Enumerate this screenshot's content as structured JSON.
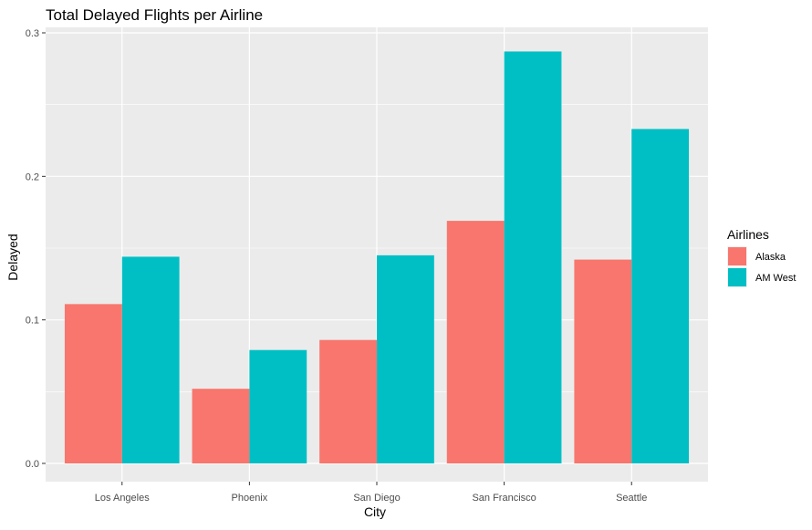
{
  "chart_data": {
    "type": "bar",
    "title": "Total Delayed Flights per Airline",
    "xlabel": "City",
    "ylabel": "Delayed",
    "categories": [
      "Los Angeles",
      "Phoenix",
      "San Diego",
      "San Francisco",
      "Seattle"
    ],
    "series": [
      {
        "name": "Alaska",
        "color": "#F8766D",
        "values": [
          0.111,
          0.052,
          0.086,
          0.169,
          0.142
        ]
      },
      {
        "name": "AM West",
        "color": "#00BFC4",
        "values": [
          0.144,
          0.079,
          0.145,
          0.287,
          0.233
        ]
      }
    ],
    "ylim": [
      0,
      0.3
    ],
    "yticks": [
      0.0,
      0.1,
      0.2,
      0.3
    ],
    "ytick_labels": [
      "0.0",
      "0.1",
      "0.2",
      "0.3"
    ],
    "grid": true,
    "panel_background": "#EBEBEB",
    "grid_color": "#FFFFFF",
    "legend": {
      "title": "Airlines",
      "position": "right"
    }
  }
}
